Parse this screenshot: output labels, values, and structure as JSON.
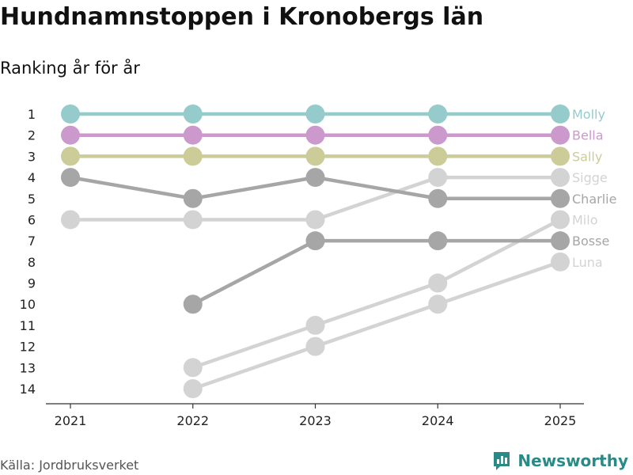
{
  "header": {
    "title": "Hundnamnstoppen i Kronobergs län",
    "subtitle": "Ranking år för år"
  },
  "footer": {
    "source": "Källa: Jordbruksverket",
    "brand": "Newsworthy"
  },
  "colors": {
    "Molly": "#96cbcc",
    "Bella": "#cc99cc",
    "Sally": "#cccc99",
    "Sigge": "#d3d3d3",
    "Charlie": "#a6a6a6",
    "Milo": "#d3d3d3",
    "Bosse": "#a6a6a6",
    "Luna": "#d3d3d3",
    "brand": "#2a8a86",
    "axis": "#333333"
  },
  "chart_data": {
    "type": "line",
    "title": "Hundnamnstoppen i Kronobergs län",
    "subtitle": "Ranking år för år",
    "x": [
      "2021",
      "2022",
      "2023",
      "2024",
      "2025"
    ],
    "ylim": [
      1,
      14
    ],
    "yticks": [
      "1",
      "2",
      "3",
      "4",
      "5",
      "6",
      "7",
      "8",
      "9",
      "10",
      "11",
      "12",
      "13",
      "14"
    ],
    "y_reversed": true,
    "series": [
      {
        "name": "Molly",
        "values": [
          1,
          1,
          1,
          1,
          1
        ]
      },
      {
        "name": "Bella",
        "values": [
          2,
          2,
          2,
          2,
          2
        ]
      },
      {
        "name": "Sally",
        "values": [
          3,
          3,
          3,
          3,
          3
        ]
      },
      {
        "name": "Sigge",
        "values": [
          6,
          6,
          6,
          4,
          4
        ]
      },
      {
        "name": "Charlie",
        "values": [
          4,
          5,
          4,
          5,
          5
        ]
      },
      {
        "name": "Milo",
        "values": [
          null,
          13,
          11,
          9,
          6
        ]
      },
      {
        "name": "Bosse",
        "values": [
          null,
          10,
          7,
          7,
          7
        ]
      },
      {
        "name": "Luna",
        "values": [
          null,
          14,
          12,
          10,
          8
        ]
      }
    ]
  }
}
